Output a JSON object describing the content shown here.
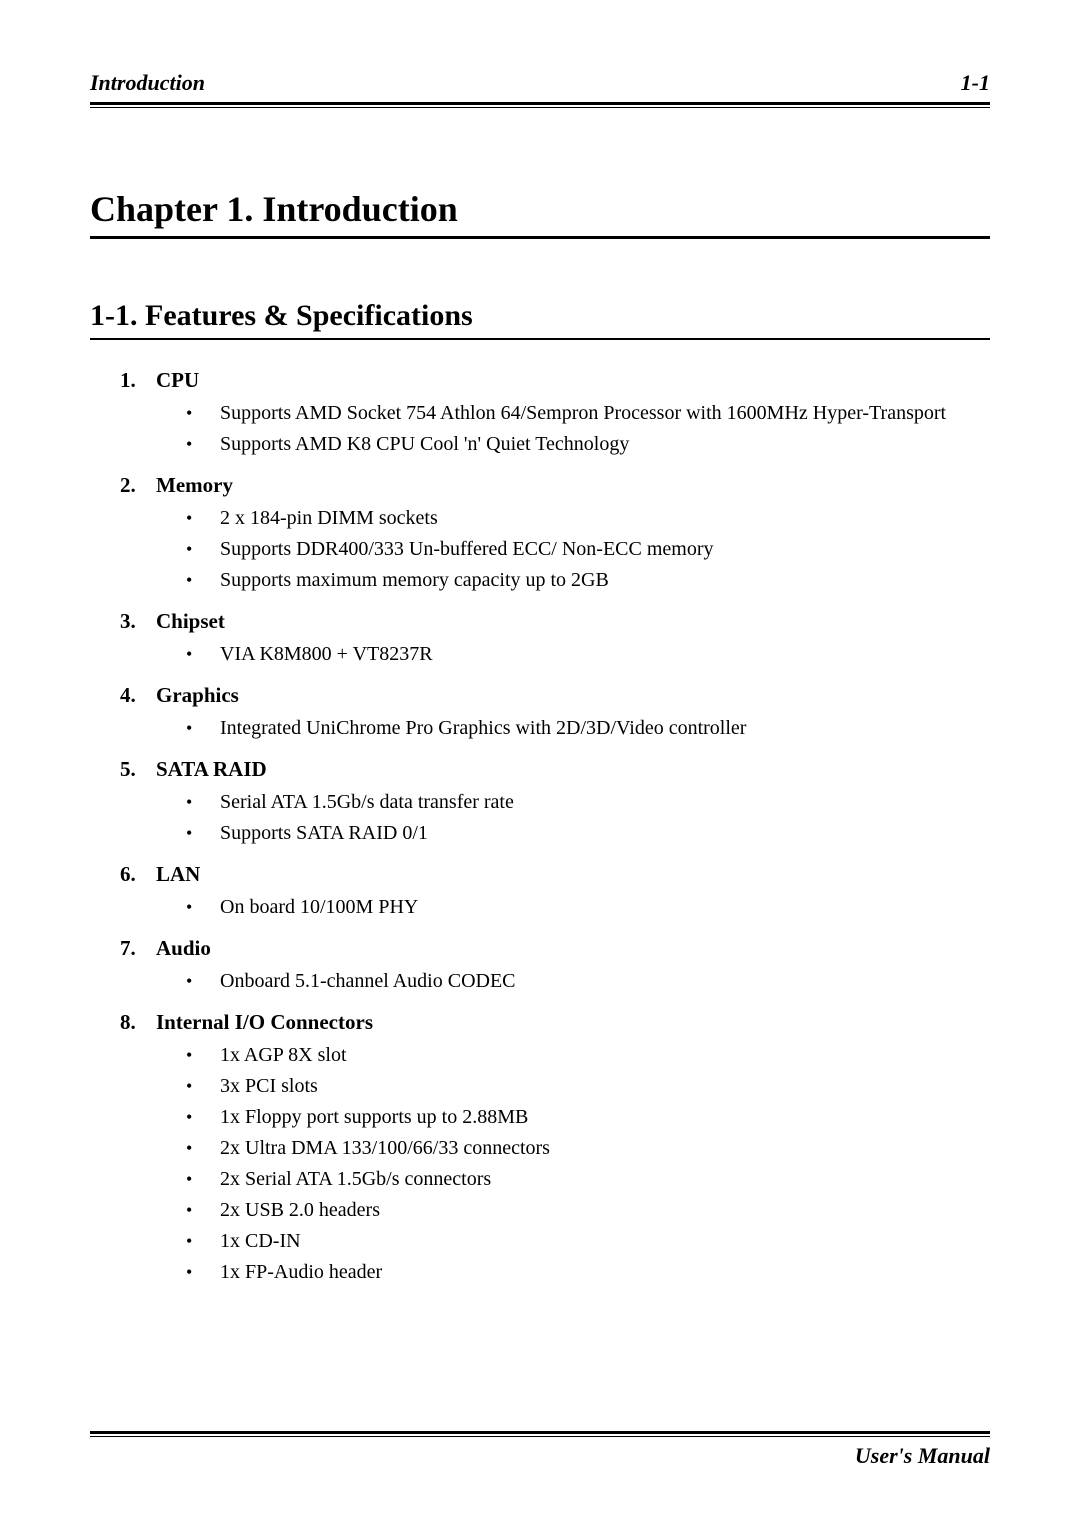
{
  "header": {
    "left": "Introduction",
    "right": "1-1"
  },
  "chapter_title": "Chapter 1.  Introduction",
  "section_title": "1-1.   Features & Specifications",
  "specs": [
    {
      "num": "1.",
      "title": "CPU",
      "items": [
        "Supports AMD Socket 754 Athlon 64/Sempron Processor with 1600MHz Hyper-Transport",
        "Supports AMD K8 CPU Cool 'n' Quiet Technology"
      ]
    },
    {
      "num": "2.",
      "title": "Memory",
      "items": [
        "2 x 184-pin DIMM sockets",
        "Supports DDR400/333 Un-buffered ECC/ Non-ECC memory",
        "Supports maximum memory capacity up to 2GB"
      ]
    },
    {
      "num": "3.",
      "title": "Chipset",
      "items": [
        "VIA K8M800 + VT8237R"
      ]
    },
    {
      "num": "4.",
      "title": "Graphics",
      "items": [
        "Integrated UniChrome Pro Graphics with 2D/3D/Video controller"
      ]
    },
    {
      "num": "5.",
      "title": "SATA RAID",
      "items": [
        "Serial ATA 1.5Gb/s data transfer rate",
        "Supports SATA RAID 0/1"
      ]
    },
    {
      "num": "6.",
      "title": "LAN",
      "items": [
        "On board 10/100M PHY"
      ]
    },
    {
      "num": "7.",
      "title": "Audio",
      "items": [
        "Onboard 5.1-channel Audio CODEC"
      ]
    },
    {
      "num": "8.",
      "title": "Internal I/O Connectors",
      "items": [
        "1x AGP 8X slot",
        "3x PCI slots",
        "1x Floppy port supports up to 2.88MB",
        "2x Ultra DMA 133/100/66/33 connectors",
        "2x Serial ATA 1.5Gb/s connectors",
        "2x USB 2.0 headers",
        "1x CD-IN",
        "1x FP-Audio header"
      ]
    }
  ],
  "footer": {
    "right": "User's Manual"
  },
  "colors": {
    "text": "#000000",
    "background": "#ffffff",
    "rule": "#000000"
  },
  "typography": {
    "body_font": "Times New Roman",
    "chapter_title_fontsize": 36,
    "section_title_fontsize": 30,
    "header_fontsize": 22,
    "spec_head_fontsize": 21,
    "spec_item_fontsize": 20,
    "footer_fontsize": 22
  }
}
